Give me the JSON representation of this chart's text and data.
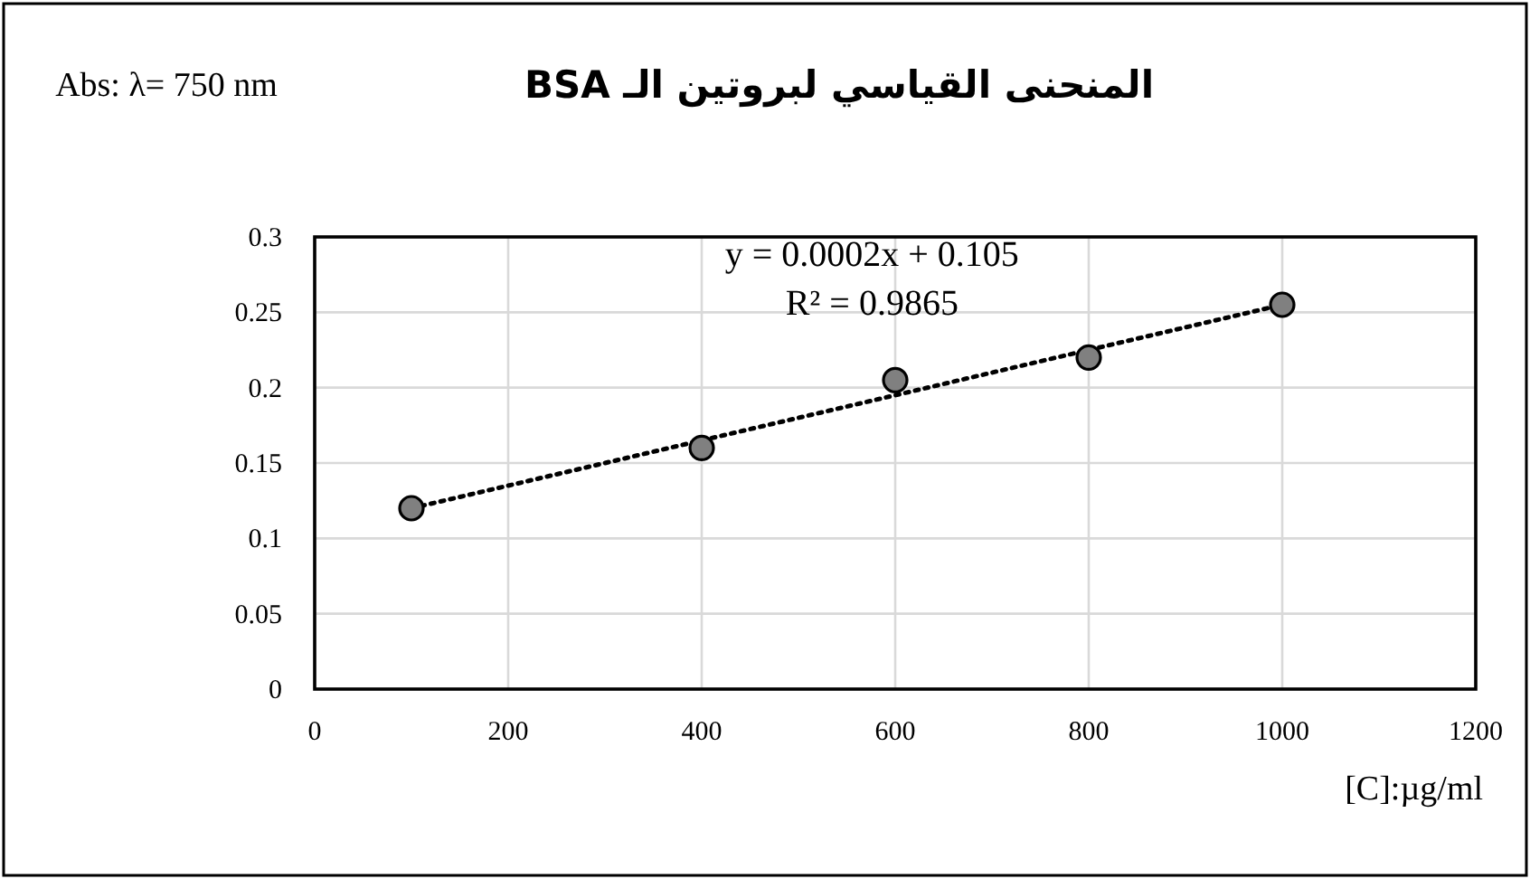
{
  "chart_data": {
    "type": "scatter",
    "title": "المنحنى القياسي لبروتين الـ BSA",
    "xlabel": "[C]:µg/ml",
    "ylabel": "Abs: λ= 750 nm",
    "annotations": [
      "y = 0.0002x + 0.105",
      "R² = 0.9865"
    ],
    "x": [
      100,
      400,
      600,
      800,
      1000
    ],
    "series": [
      {
        "values": [
          0.12,
          0.16,
          0.205,
          0.22,
          0.255
        ],
        "color": "#808080",
        "marker": "circle"
      },
      {
        "type": "line",
        "x": [
          100,
          1000
        ],
        "values": [
          0.12,
          0.255
        ],
        "color": "#000000",
        "line_style": "dotted",
        "marker": "none"
      }
    ],
    "xlim": [
      0,
      1200
    ],
    "ylim": [
      0,
      0.3
    ],
    "xticks": [
      0,
      200,
      400,
      600,
      800,
      1000,
      1200
    ],
    "yticks": [
      0,
      0.05,
      0.1,
      0.15,
      0.2,
      0.25,
      0.3
    ],
    "grid": true
  }
}
